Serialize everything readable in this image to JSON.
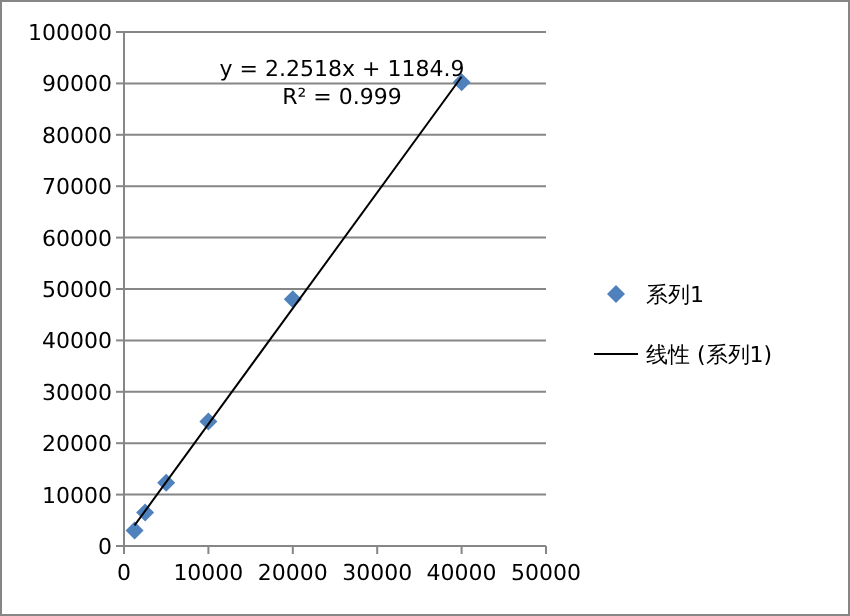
{
  "chart_data": {
    "type": "scatter",
    "xlim": [
      0,
      50000
    ],
    "ylim": [
      0,
      100000
    ],
    "xticks": [
      0,
      10000,
      20000,
      30000,
      40000,
      50000
    ],
    "yticks": [
      0,
      10000,
      20000,
      30000,
      40000,
      50000,
      60000,
      70000,
      80000,
      90000,
      100000
    ],
    "grid": "y",
    "legend": "right",
    "series": [
      {
        "name": "系列1",
        "marker": "diamond",
        "color": "#4f81bd",
        "x": [
          1250,
          2500,
          5000,
          10000,
          20000,
          40000
        ],
        "values": [
          3000,
          6500,
          12300,
          24200,
          48000,
          90200
        ]
      },
      {
        "name": "线性 (系列1)",
        "type": "line",
        "marker": "none",
        "color": "#000000",
        "line_style": "solid",
        "x": [
          1250,
          40000
        ],
        "values": [
          4000,
          91300
        ]
      }
    ],
    "annotations": [
      "y = 2.2518x + 1184.9",
      "R² = 0.999"
    ]
  }
}
